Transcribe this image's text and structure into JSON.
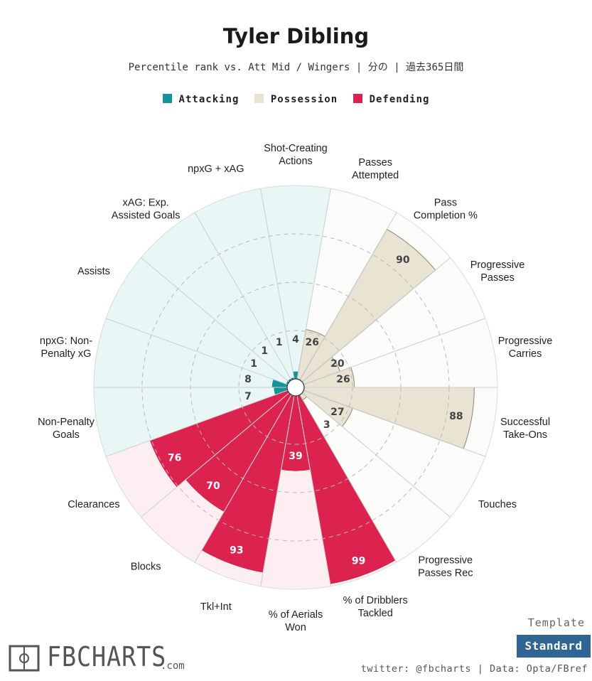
{
  "header": {
    "title": "Tyler Dibling",
    "subtitle": "Percentile rank vs. Att Mid / Wingers | 分の | 過去365日間"
  },
  "legend": [
    {
      "label": "Attacking",
      "color": "#13949b"
    },
    {
      "label": "Possession",
      "color": "#e8e3d2"
    },
    {
      "label": "Defending",
      "color": "#dc2350"
    }
  ],
  "chart_data": {
    "type": "polar-bar",
    "title": "Tyler Dibling",
    "scale": [
      0,
      100
    ],
    "gridlines": [
      25,
      50,
      75
    ],
    "start_direction": "left",
    "direction": "clockwise",
    "categories": [
      {
        "name": "Attacking",
        "bar_color": "#13949b",
        "bg_color": "#e8f6f6"
      },
      {
        "name": "Possession",
        "bar_color": "#e8e3d2",
        "bg_color": "#fbfbfa"
      },
      {
        "name": "Defending",
        "bar_color": "#dc2350",
        "bg_color": "#fdeef2"
      }
    ],
    "stats": [
      {
        "label": "npxG: Non-\nPenalty xG",
        "value": 8,
        "category": "Attacking"
      },
      {
        "label": "Assists",
        "value": 1,
        "category": "Attacking"
      },
      {
        "label": "xAG: Exp.\nAssisted Goals",
        "value": 1,
        "category": "Attacking"
      },
      {
        "label": "npxG + xAG",
        "value": 1,
        "category": "Attacking"
      },
      {
        "label": "Shot-Creating\nActions",
        "value": 4,
        "category": "Attacking"
      },
      {
        "label": "Passes\nAttempted",
        "value": 26,
        "category": "Possession"
      },
      {
        "label": "Pass\nCompletion %",
        "value": 90,
        "category": "Possession"
      },
      {
        "label": "Progressive\nPasses",
        "value": 20,
        "category": "Possession"
      },
      {
        "label": "Progressive\nCarries",
        "value": 26,
        "category": "Possession"
      },
      {
        "label": "Successful\nTake-Ons",
        "value": 88,
        "category": "Possession"
      },
      {
        "label": "Touches",
        "value": 27,
        "category": "Possession"
      },
      {
        "label": "Progressive\nPasses Rec",
        "value": 3,
        "category": "Possession"
      },
      {
        "label": "% of Dribblers\nTackled",
        "value": 99,
        "category": "Defending"
      },
      {
        "label": "% of Aerials\nWon",
        "value": 39,
        "category": "Defending"
      },
      {
        "label": "Tkl+Int",
        "value": 93,
        "category": "Defending"
      },
      {
        "label": "Blocks",
        "value": 70,
        "category": "Defending"
      },
      {
        "label": "Clearances",
        "value": 76,
        "category": "Defending"
      },
      {
        "label": "Non-Penalty\nGoals",
        "value": 7,
        "category": "Attacking"
      }
    ]
  },
  "footer": {
    "logo_text": "FBCHARTS",
    "logo_suffix": ".com",
    "template_label": "Template",
    "template_button": "Standard",
    "credit": "twitter: @fbcharts | Data: Opta/FBref"
  }
}
